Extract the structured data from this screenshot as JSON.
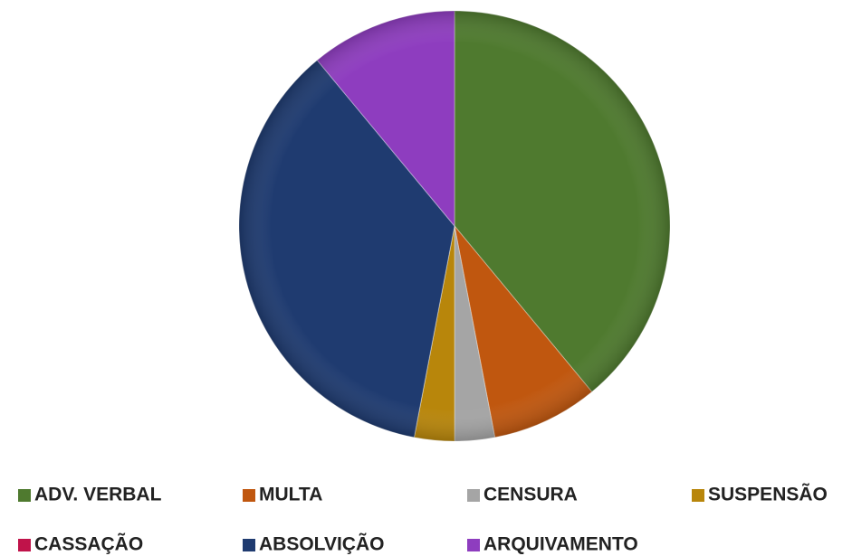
{
  "chart_data": {
    "type": "pie",
    "categories": [
      "ADV. VERBAL",
      "MULTA",
      "CENSURA",
      "SUSPENSÃO",
      "CASSAÇÃO",
      "ABSOLVIÇÃO",
      "ARQUIVAMENTO"
    ],
    "values": [
      39,
      8,
      3,
      3,
      0,
      36,
      11
    ],
    "colors": [
      "#4f7a2f",
      "#c0570f",
      "#a5a5a5",
      "#b8860b",
      "#c0134a",
      "#1f3b70",
      "#8e3dbf"
    ],
    "legend": "bottom"
  }
}
